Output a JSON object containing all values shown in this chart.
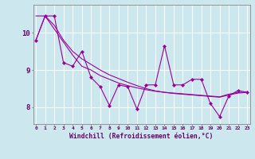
{
  "xlabel": "Windchill (Refroidissement éolien,°C)",
  "bg_color": "#cce8ee",
  "line_color": "#990099",
  "grid_color": "#ffffff",
  "x": [
    0,
    1,
    2,
    3,
    4,
    5,
    6,
    7,
    8,
    9,
    10,
    11,
    12,
    13,
    14,
    15,
    16,
    17,
    18,
    19,
    20,
    21,
    22,
    23
  ],
  "y_main": [
    9.8,
    10.45,
    10.45,
    9.2,
    9.1,
    9.5,
    8.8,
    8.55,
    8.05,
    8.6,
    8.55,
    7.95,
    8.6,
    8.6,
    9.65,
    8.6,
    8.6,
    8.75,
    8.75,
    8.1,
    7.75,
    8.3,
    8.45,
    8.4
  ],
  "y_trend1": [
    10.45,
    10.45,
    10.1,
    9.75,
    9.4,
    9.1,
    9.0,
    8.85,
    8.75,
    8.65,
    8.58,
    8.52,
    8.47,
    8.43,
    8.4,
    8.38,
    8.36,
    8.34,
    8.32,
    8.3,
    8.28,
    8.35,
    8.4,
    8.4
  ],
  "y_trend2": [
    9.8,
    10.45,
    10.2,
    9.8,
    9.5,
    9.3,
    9.15,
    9.0,
    8.87,
    8.77,
    8.67,
    8.58,
    8.5,
    8.44,
    8.4,
    8.37,
    8.35,
    8.33,
    8.31,
    8.29,
    8.27,
    8.33,
    8.38,
    8.4
  ],
  "yticks": [
    8,
    9,
    10
  ],
  "xticks": [
    0,
    1,
    2,
    3,
    4,
    5,
    6,
    7,
    8,
    9,
    10,
    11,
    12,
    13,
    14,
    15,
    16,
    17,
    18,
    19,
    20,
    21,
    22,
    23
  ],
  "ylim": [
    7.55,
    10.75
  ],
  "xlim": [
    -0.3,
    23.3
  ]
}
